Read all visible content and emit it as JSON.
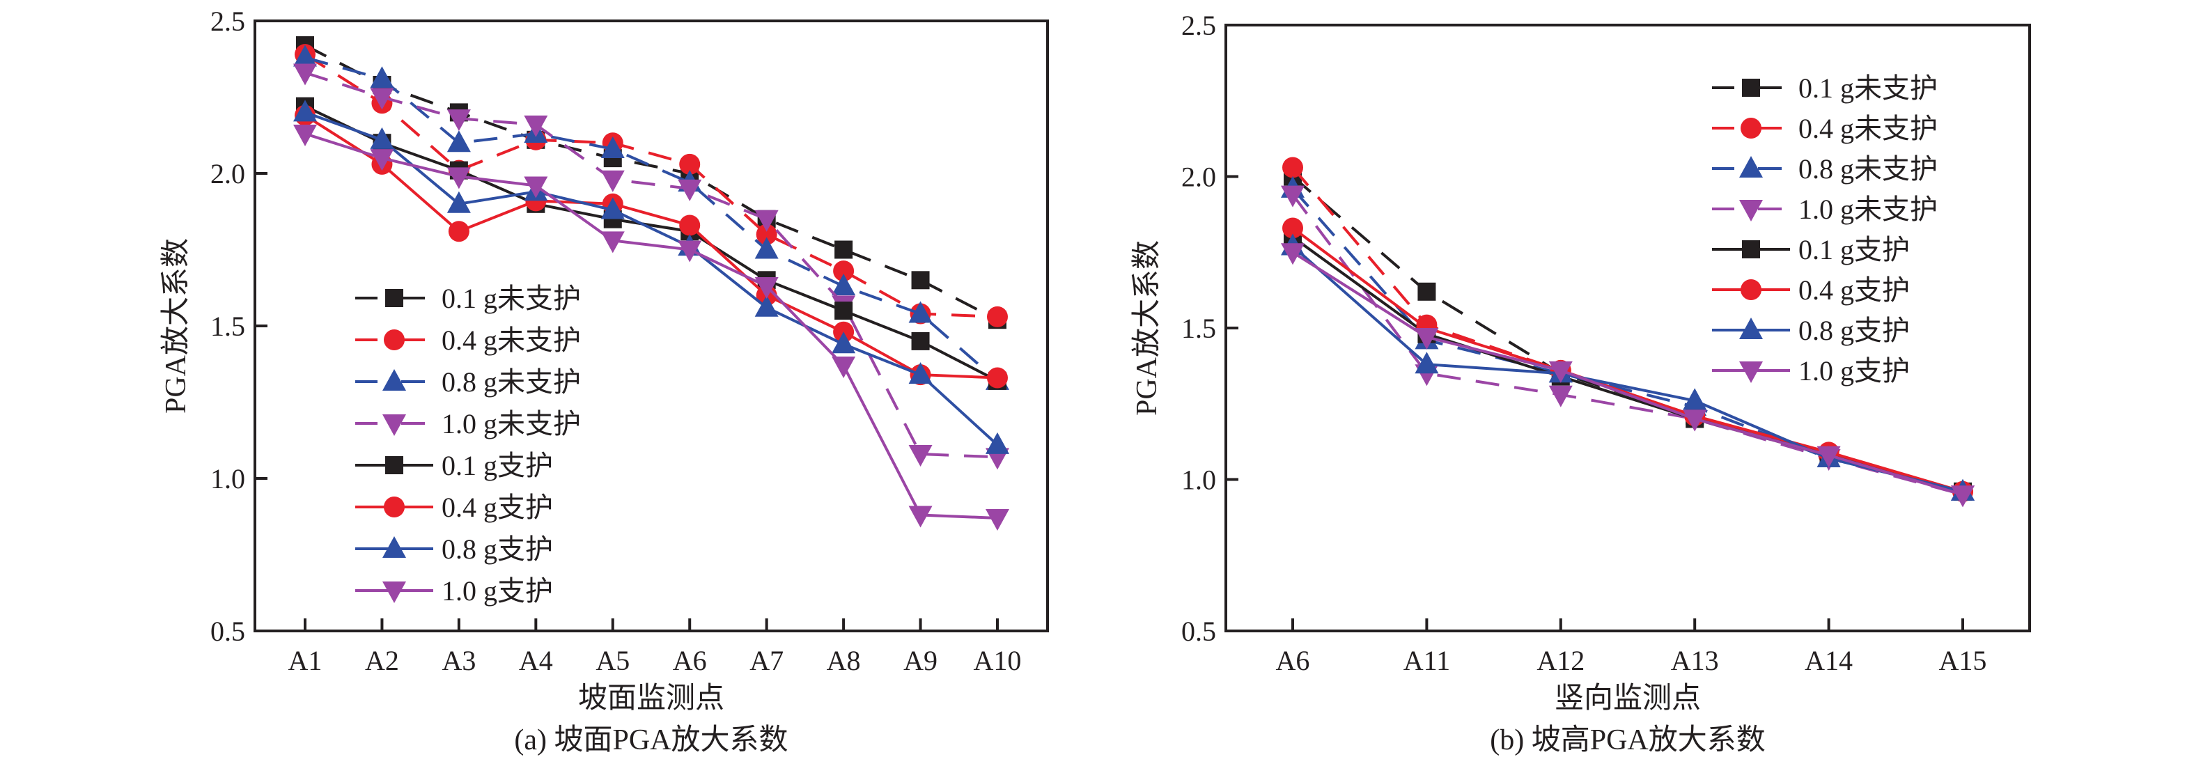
{
  "colors": {
    "black": "#231f20",
    "red": "#e8202a",
    "blue": "#2e4fa3",
    "purple": "#9b45a5"
  },
  "chart_data": [
    {
      "type": "line",
      "title": "(a) 坡面PGA放大系数",
      "xlabel": "坡面监测点",
      "ylabel": "PGA放大系数",
      "ylim": [
        0.5,
        2.5
      ],
      "yticks": [
        "0.5",
        "1.0",
        "1.5",
        "2.0",
        "2.5"
      ],
      "grid": false,
      "legend_position": "lower-left",
      "categories": [
        "A1",
        "A2",
        "A3",
        "A4",
        "A5",
        "A6",
        "A7",
        "A8",
        "A9",
        "A10"
      ],
      "series": [
        {
          "name": "0.1 g未支护",
          "color": "black",
          "marker": "square",
          "dashed": true,
          "values": [
            2.42,
            2.29,
            2.2,
            2.11,
            2.05,
            2.0,
            1.85,
            1.75,
            1.65,
            1.52
          ]
        },
        {
          "name": "0.4 g未支护",
          "color": "red",
          "marker": "circle",
          "dashed": true,
          "values": [
            2.39,
            2.23,
            2.01,
            2.11,
            2.1,
            2.03,
            1.8,
            1.68,
            1.54,
            1.53
          ]
        },
        {
          "name": "0.8 g未支护",
          "color": "blue",
          "marker": "triangle-up",
          "dashed": true,
          "values": [
            2.38,
            2.31,
            2.1,
            2.13,
            2.08,
            1.97,
            1.75,
            1.63,
            1.54,
            1.32
          ]
        },
        {
          "name": "1.0 g未支护",
          "color": "purple",
          "marker": "triangle-down",
          "dashed": true,
          "values": [
            2.33,
            2.25,
            2.18,
            2.16,
            1.98,
            1.95,
            1.85,
            1.57,
            1.08,
            1.07
          ]
        },
        {
          "name": "0.1 g支护",
          "color": "black",
          "marker": "square",
          "dashed": false,
          "values": [
            2.22,
            2.1,
            2.01,
            1.9,
            1.85,
            1.81,
            1.65,
            1.55,
            1.45,
            1.32
          ]
        },
        {
          "name": "0.4 g支护",
          "color": "red",
          "marker": "circle",
          "dashed": false,
          "values": [
            2.19,
            2.03,
            1.81,
            1.91,
            1.9,
            1.83,
            1.6,
            1.48,
            1.34,
            1.33
          ]
        },
        {
          "name": "0.8 g支护",
          "color": "blue",
          "marker": "triangle-up",
          "dashed": false,
          "values": [
            2.2,
            2.11,
            1.9,
            1.94,
            1.88,
            1.76,
            1.56,
            1.44,
            1.34,
            1.11
          ]
        },
        {
          "name": "1.0 g支护",
          "color": "purple",
          "marker": "triangle-down",
          "dashed": false,
          "values": [
            2.13,
            2.05,
            1.99,
            1.96,
            1.78,
            1.75,
            1.63,
            1.37,
            0.88,
            0.87
          ]
        }
      ]
    },
    {
      "type": "line",
      "title": "(b) 坡高PGA放大系数",
      "xlabel": "竖向监测点",
      "ylabel": "PGA放大系数",
      "ylim": [
        0.5,
        2.5
      ],
      "yticks": [
        "0.5",
        "1.0",
        "1.5",
        "2.0",
        "2.5"
      ],
      "grid": false,
      "legend_position": "top-right",
      "categories": [
        "A6",
        "A11",
        "A12",
        "A13",
        "A14",
        "A15"
      ],
      "series": [
        {
          "name": "0.1 g未支护",
          "color": "black",
          "marker": "square",
          "dashed": true,
          "values": [
            2.0,
            1.62,
            1.35,
            1.21,
            1.08,
            0.96
          ]
        },
        {
          "name": "0.4 g未支护",
          "color": "red",
          "marker": "circle",
          "dashed": true,
          "values": [
            2.03,
            1.51,
            1.36,
            1.21,
            1.08,
            0.96
          ]
        },
        {
          "name": "0.8 g未支护",
          "color": "blue",
          "marker": "triangle-up",
          "dashed": true,
          "values": [
            1.96,
            1.46,
            1.35,
            1.24,
            1.07,
            0.96
          ]
        },
        {
          "name": "1.0 g未支护",
          "color": "purple",
          "marker": "triangle-down",
          "dashed": true,
          "values": [
            1.94,
            1.35,
            1.28,
            1.2,
            1.07,
            0.95
          ]
        },
        {
          "name": "0.1 g支护",
          "color": "black",
          "marker": "square",
          "dashed": false,
          "values": [
            1.8,
            1.48,
            1.34,
            1.2,
            1.08,
            0.96
          ]
        },
        {
          "name": "0.4 g支护",
          "color": "red",
          "marker": "circle",
          "dashed": false,
          "values": [
            1.83,
            1.5,
            1.36,
            1.21,
            1.09,
            0.96
          ]
        },
        {
          "name": "0.8 g支护",
          "color": "blue",
          "marker": "triangle-up",
          "dashed": false,
          "values": [
            1.77,
            1.38,
            1.35,
            1.26,
            1.07,
            0.96
          ]
        },
        {
          "name": "1.0 g支护",
          "color": "purple",
          "marker": "triangle-down",
          "dashed": false,
          "values": [
            1.75,
            1.47,
            1.36,
            1.2,
            1.08,
            0.95
          ]
        }
      ]
    }
  ]
}
